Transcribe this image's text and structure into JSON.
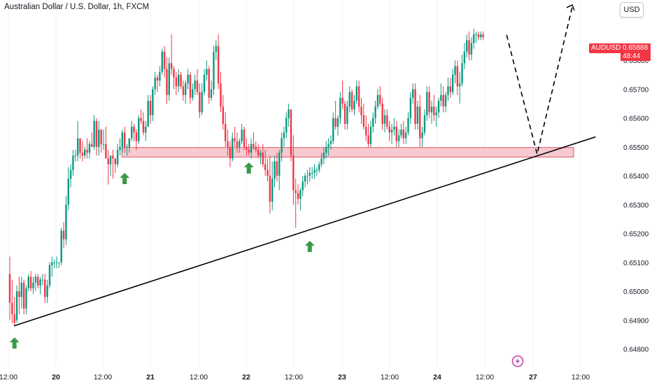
{
  "header": {
    "title": "Australian Dollar / U.S. Dollar, 1h, FXCM",
    "currency_button": "USD"
  },
  "price_tag": {
    "symbol": "AUDUSD",
    "price": "0.65888",
    "countdown": "48:44",
    "color": "#f23645"
  },
  "colors": {
    "up": "#089981",
    "down": "#f23645",
    "zone_fill": "#f3b8c0",
    "zone_border": "#e0566a",
    "arrow": "#3a9a48",
    "trendline": "#000000"
  },
  "chart_data": {
    "type": "candlestick",
    "x_tick_labels": [
      "12:00",
      "20",
      "12:00",
      "21",
      "12:00",
      "22",
      "12:00",
      "23",
      "12:00",
      "24",
      "12:00",
      "27",
      "12:00"
    ],
    "y_tick_labels": [
      "0.64800",
      "0.64900",
      "0.65000",
      "0.65100",
      "0.65200",
      "0.65300",
      "0.65400",
      "0.65500",
      "0.65600",
      "0.65700",
      "0.65800"
    ],
    "ylim": [
      0.6476,
      0.6598
    ],
    "zone": {
      "low": 0.65465,
      "high": 0.65498
    },
    "trendline": [
      {
        "t": 0,
        "price": 0.6488
      },
      {
        "t": 250,
        "price": 0.65535
      }
    ],
    "projection": [
      {
        "t": 212,
        "price": 0.65888
      },
      {
        "t": 225,
        "price": 0.65475
      },
      {
        "t": 240,
        "price": 0.65985
      }
    ],
    "arrow_markers": [
      2,
      49,
      102,
      128
    ],
    "candles": [
      [
        0.6506,
        0.6512,
        0.649,
        0.6496
      ],
      [
        0.6496,
        0.6504,
        0.6489,
        0.6492
      ],
      [
        0.6492,
        0.6498,
        0.6488,
        0.6489
      ],
      [
        0.649,
        0.6502,
        0.6489,
        0.65
      ],
      [
        0.65,
        0.6505,
        0.6492,
        0.6498
      ],
      [
        0.6498,
        0.6505,
        0.6494,
        0.6503
      ],
      [
        0.6503,
        0.6504,
        0.6492,
        0.6494
      ],
      [
        0.6494,
        0.6502,
        0.6492,
        0.6501
      ],
      [
        0.6501,
        0.6506,
        0.65,
        0.6505
      ],
      [
        0.6505,
        0.6507,
        0.65,
        0.6501
      ],
      [
        0.6501,
        0.6505,
        0.6499,
        0.6503
      ],
      [
        0.6503,
        0.6506,
        0.65,
        0.6505
      ],
      [
        0.6505,
        0.6506,
        0.6501,
        0.6502
      ],
      [
        0.6502,
        0.6505,
        0.6499,
        0.6504
      ],
      [
        0.6504,
        0.6506,
        0.6502,
        0.6504
      ],
      [
        0.6504,
        0.6506,
        0.6496,
        0.6498
      ],
      [
        0.6498,
        0.6504,
        0.6496,
        0.6502
      ],
      [
        0.6502,
        0.651,
        0.6501,
        0.6509
      ],
      [
        0.6509,
        0.6512,
        0.6505,
        0.651
      ],
      [
        0.651,
        0.6511,
        0.6508,
        0.651
      ],
      [
        0.651,
        0.6512,
        0.6508,
        0.651
      ],
      [
        0.651,
        0.651,
        0.6508,
        0.651
      ],
      [
        0.651,
        0.6522,
        0.6509,
        0.6521
      ],
      [
        0.6521,
        0.6524,
        0.6515,
        0.6518
      ],
      [
        0.6518,
        0.6533,
        0.6516,
        0.653
      ],
      [
        0.653,
        0.6543,
        0.6528,
        0.6539
      ],
      [
        0.6539,
        0.6544,
        0.6536,
        0.6542
      ],
      [
        0.6542,
        0.6549,
        0.654,
        0.6547
      ],
      [
        0.6547,
        0.6549,
        0.6545,
        0.6547
      ],
      [
        0.6547,
        0.6559,
        0.6545,
        0.6553
      ],
      [
        0.6553,
        0.6552,
        0.6546,
        0.6548
      ],
      [
        0.6548,
        0.6552,
        0.6545,
        0.6547
      ],
      [
        0.6547,
        0.655,
        0.6546,
        0.6549
      ],
      [
        0.6549,
        0.6553,
        0.6546,
        0.6548
      ],
      [
        0.6548,
        0.6552,
        0.6546,
        0.6551
      ],
      [
        0.6551,
        0.6555,
        0.655,
        0.655
      ],
      [
        0.655,
        0.6561,
        0.6549,
        0.6559
      ],
      [
        0.6559,
        0.656,
        0.6547,
        0.655
      ],
      [
        0.655,
        0.6559,
        0.6547,
        0.6556
      ],
      [
        0.6556,
        0.6556,
        0.6548,
        0.6551
      ],
      [
        0.6551,
        0.6556,
        0.6549,
        0.6551
      ],
      [
        0.6551,
        0.6557,
        0.6546,
        0.6546
      ],
      [
        0.6546,
        0.6549,
        0.6537,
        0.6544
      ],
      [
        0.6544,
        0.6547,
        0.654,
        0.6547
      ],
      [
        0.6547,
        0.6549,
        0.6539,
        0.6546
      ],
      [
        0.6546,
        0.6546,
        0.6541,
        0.6544
      ],
      [
        0.6544,
        0.6551,
        0.6543,
        0.6549
      ],
      [
        0.6549,
        0.6553,
        0.6547,
        0.655
      ],
      [
        0.655,
        0.6556,
        0.6548,
        0.6555
      ],
      [
        0.6555,
        0.6557,
        0.6548,
        0.655
      ],
      [
        0.655,
        0.6551,
        0.6547,
        0.655
      ],
      [
        0.655,
        0.6553,
        0.6548,
        0.6553
      ],
      [
        0.6553,
        0.6559,
        0.6552,
        0.6557
      ],
      [
        0.6557,
        0.6558,
        0.6552,
        0.6555
      ],
      [
        0.6555,
        0.6556,
        0.6549,
        0.6552
      ],
      [
        0.6552,
        0.6561,
        0.6551,
        0.656
      ],
      [
        0.656,
        0.6563,
        0.6558,
        0.6559
      ],
      [
        0.6559,
        0.6562,
        0.6554,
        0.6555
      ],
      [
        0.6555,
        0.6559,
        0.6552,
        0.6557
      ],
      [
        0.6557,
        0.6568,
        0.6557,
        0.6566
      ],
      [
        0.6566,
        0.6568,
        0.6558,
        0.6561
      ],
      [
        0.6561,
        0.6571,
        0.6559,
        0.657
      ],
      [
        0.657,
        0.6576,
        0.6568,
        0.6574
      ],
      [
        0.6574,
        0.6575,
        0.6569,
        0.6573
      ],
      [
        0.6573,
        0.6578,
        0.6571,
        0.6576
      ],
      [
        0.6576,
        0.6584,
        0.6575,
        0.6583
      ],
      [
        0.6583,
        0.6585,
        0.6574,
        0.6577
      ],
      [
        0.6577,
        0.6581,
        0.6565,
        0.6568
      ],
      [
        0.6568,
        0.6581,
        0.6566,
        0.6579
      ],
      [
        0.6579,
        0.6589,
        0.6575,
        0.6577
      ],
      [
        0.6577,
        0.6578,
        0.657,
        0.6574
      ],
      [
        0.6574,
        0.6576,
        0.6568,
        0.6571
      ],
      [
        0.6571,
        0.6577,
        0.6569,
        0.6575
      ],
      [
        0.6575,
        0.6576,
        0.657,
        0.6571
      ],
      [
        0.6571,
        0.6573,
        0.6566,
        0.6568
      ],
      [
        0.6568,
        0.6573,
        0.6565,
        0.6572
      ],
      [
        0.6572,
        0.6577,
        0.657,
        0.6575
      ],
      [
        0.6575,
        0.6576,
        0.6565,
        0.6567
      ],
      [
        0.6567,
        0.6572,
        0.6566,
        0.657
      ],
      [
        0.657,
        0.6575,
        0.6568,
        0.6573
      ],
      [
        0.6573,
        0.6577,
        0.6568,
        0.6569
      ],
      [
        0.6569,
        0.6572,
        0.656,
        0.6562
      ],
      [
        0.6562,
        0.6572,
        0.6561,
        0.6569
      ],
      [
        0.6569,
        0.6577,
        0.6568,
        0.6575
      ],
      [
        0.6575,
        0.658,
        0.6573,
        0.6577
      ],
      [
        0.6577,
        0.6578,
        0.6565,
        0.6567
      ],
      [
        0.6567,
        0.6573,
        0.6566,
        0.657
      ],
      [
        0.657,
        0.6585,
        0.6568,
        0.6583
      ],
      [
        0.6583,
        0.6587,
        0.658,
        0.6585
      ],
      [
        0.6585,
        0.6589,
        0.657,
        0.6572
      ],
      [
        0.6572,
        0.6576,
        0.6562,
        0.6564
      ],
      [
        0.6564,
        0.6568,
        0.6556,
        0.6558
      ],
      [
        0.6558,
        0.6562,
        0.655,
        0.6552
      ],
      [
        0.6552,
        0.6556,
        0.6547,
        0.655
      ],
      [
        0.655,
        0.6552,
        0.6543,
        0.6546
      ],
      [
        0.6546,
        0.6555,
        0.6545,
        0.6553
      ],
      [
        0.6553,
        0.6557,
        0.655,
        0.6552
      ],
      [
        0.6552,
        0.6555,
        0.6548,
        0.655
      ],
      [
        0.655,
        0.6553,
        0.6548,
        0.6552
      ],
      [
        0.6552,
        0.6558,
        0.6551,
        0.6556
      ],
      [
        0.6556,
        0.6557,
        0.6549,
        0.655
      ],
      [
        0.655,
        0.6553,
        0.6547,
        0.6549
      ],
      [
        0.6549,
        0.6551,
        0.6547,
        0.6548
      ],
      [
        0.6548,
        0.6553,
        0.6546,
        0.6551
      ],
      [
        0.6551,
        0.6555,
        0.6549,
        0.655
      ],
      [
        0.655,
        0.6552,
        0.6548,
        0.6549
      ],
      [
        0.6549,
        0.6551,
        0.6546,
        0.6547
      ],
      [
        0.6547,
        0.6549,
        0.6544,
        0.6548
      ],
      [
        0.6548,
        0.6551,
        0.6543,
        0.6544
      ],
      [
        0.6544,
        0.6549,
        0.654,
        0.6542
      ],
      [
        0.6542,
        0.6546,
        0.6538,
        0.654
      ],
      [
        0.654,
        0.6547,
        0.6527,
        0.6531
      ],
      [
        0.6531,
        0.6545,
        0.6528,
        0.6539
      ],
      [
        0.6539,
        0.6547,
        0.6536,
        0.6545
      ],
      [
        0.6545,
        0.6548,
        0.6538,
        0.654
      ],
      [
        0.654,
        0.6549,
        0.6535,
        0.6548
      ],
      [
        0.6548,
        0.6555,
        0.6545,
        0.6553
      ],
      [
        0.6553,
        0.6557,
        0.655,
        0.6555
      ],
      [
        0.6555,
        0.6562,
        0.6553,
        0.656
      ],
      [
        0.656,
        0.6565,
        0.6557,
        0.6563
      ],
      [
        0.6563,
        0.6563,
        0.6545,
        0.6547
      ],
      [
        0.6547,
        0.6554,
        0.653,
        0.6535
      ],
      [
        0.6535,
        0.6539,
        0.6522,
        0.6534
      ],
      [
        0.6534,
        0.6537,
        0.653,
        0.6532
      ],
      [
        0.6532,
        0.6536,
        0.6528,
        0.6535
      ],
      [
        0.6535,
        0.654,
        0.6533,
        0.6538
      ],
      [
        0.6538,
        0.6541,
        0.6536,
        0.654
      ],
      [
        0.654,
        0.6542,
        0.6537,
        0.654
      ],
      [
        0.654,
        0.6543,
        0.6538,
        0.6541
      ],
      [
        0.6541,
        0.6543,
        0.6539,
        0.6541
      ],
      [
        0.6541,
        0.6544,
        0.6539,
        0.6542
      ],
      [
        0.6542,
        0.6543,
        0.654,
        0.6542
      ],
      [
        0.6542,
        0.6545,
        0.6541,
        0.6544
      ],
      [
        0.6544,
        0.6548,
        0.6543,
        0.6546
      ],
      [
        0.6546,
        0.655,
        0.6544,
        0.6548
      ],
      [
        0.6548,
        0.6552,
        0.6546,
        0.655
      ],
      [
        0.655,
        0.6553,
        0.6547,
        0.6551
      ],
      [
        0.6551,
        0.6554,
        0.6549,
        0.6552
      ],
      [
        0.6552,
        0.6562,
        0.6551,
        0.656
      ],
      [
        0.656,
        0.6566,
        0.6556,
        0.6557
      ],
      [
        0.6557,
        0.6561,
        0.6554,
        0.656
      ],
      [
        0.656,
        0.6569,
        0.6558,
        0.6567
      ],
      [
        0.6567,
        0.6573,
        0.6563,
        0.6565
      ],
      [
        0.6565,
        0.6566,
        0.6556,
        0.6558
      ],
      [
        0.6558,
        0.6566,
        0.6556,
        0.6564
      ],
      [
        0.6564,
        0.6571,
        0.6562,
        0.6569
      ],
      [
        0.6569,
        0.657,
        0.6562,
        0.6563
      ],
      [
        0.6563,
        0.6568,
        0.6561,
        0.6566
      ],
      [
        0.6566,
        0.6573,
        0.6565,
        0.6571
      ],
      [
        0.6571,
        0.6573,
        0.6562,
        0.6564
      ],
      [
        0.6564,
        0.6567,
        0.6558,
        0.6561
      ],
      [
        0.6561,
        0.6565,
        0.6556,
        0.6557
      ],
      [
        0.6557,
        0.6561,
        0.6552,
        0.6554
      ],
      [
        0.6554,
        0.6558,
        0.655,
        0.6551
      ],
      [
        0.6551,
        0.6559,
        0.655,
        0.6557
      ],
      [
        0.6557,
        0.6562,
        0.6555,
        0.656
      ],
      [
        0.656,
        0.6566,
        0.6558,
        0.6564
      ],
      [
        0.6564,
        0.657,
        0.6563,
        0.6568
      ],
      [
        0.6568,
        0.6571,
        0.6564,
        0.6565
      ],
      [
        0.6565,
        0.6567,
        0.6556,
        0.6558
      ],
      [
        0.6558,
        0.6563,
        0.6555,
        0.6561
      ],
      [
        0.6561,
        0.6563,
        0.6556,
        0.6557
      ],
      [
        0.6557,
        0.6559,
        0.6552,
        0.6555
      ],
      [
        0.6555,
        0.6558,
        0.6551,
        0.6556
      ],
      [
        0.6556,
        0.656,
        0.6554,
        0.6557
      ],
      [
        0.6557,
        0.6559,
        0.655,
        0.6552
      ],
      [
        0.6552,
        0.6556,
        0.655,
        0.6554
      ],
      [
        0.6554,
        0.6558,
        0.6553,
        0.6556
      ],
      [
        0.6556,
        0.6559,
        0.6551,
        0.6553
      ],
      [
        0.6553,
        0.6557,
        0.6551,
        0.6555
      ],
      [
        0.6555,
        0.6562,
        0.6554,
        0.656
      ],
      [
        0.656,
        0.6569,
        0.6558,
        0.6567
      ],
      [
        0.6567,
        0.6572,
        0.6565,
        0.657
      ],
      [
        0.657,
        0.6572,
        0.6556,
        0.6558
      ],
      [
        0.6558,
        0.6566,
        0.6556,
        0.6564
      ],
      [
        0.6564,
        0.6568,
        0.655,
        0.6553
      ],
      [
        0.6553,
        0.6557,
        0.655,
        0.6555
      ],
      [
        0.6555,
        0.6563,
        0.6554,
        0.6561
      ],
      [
        0.6561,
        0.6571,
        0.6559,
        0.6569
      ],
      [
        0.6569,
        0.6571,
        0.656,
        0.6562
      ],
      [
        0.6562,
        0.6566,
        0.6558,
        0.6564
      ],
      [
        0.6564,
        0.6568,
        0.6559,
        0.6561
      ],
      [
        0.6561,
        0.6564,
        0.6557,
        0.6562
      ],
      [
        0.6562,
        0.6567,
        0.656,
        0.6566
      ],
      [
        0.6566,
        0.6572,
        0.6564,
        0.6568
      ],
      [
        0.6568,
        0.6571,
        0.6562,
        0.6564
      ],
      [
        0.6564,
        0.6569,
        0.6562,
        0.6568
      ],
      [
        0.6568,
        0.6574,
        0.6566,
        0.6571
      ],
      [
        0.6571,
        0.6574,
        0.6567,
        0.6569
      ],
      [
        0.6569,
        0.6577,
        0.6568,
        0.6575
      ],
      [
        0.6575,
        0.658,
        0.6572,
        0.6578
      ],
      [
        0.6578,
        0.658,
        0.6568,
        0.6571
      ],
      [
        0.6571,
        0.6576,
        0.6565,
        0.6572
      ],
      [
        0.6572,
        0.6582,
        0.6571,
        0.6579
      ],
      [
        0.6579,
        0.6586,
        0.6577,
        0.6583
      ],
      [
        0.6583,
        0.6589,
        0.6581,
        0.6587
      ],
      [
        0.6587,
        0.659,
        0.658,
        0.6582
      ],
      [
        0.6582,
        0.6588,
        0.658,
        0.6586
      ],
      [
        0.6586,
        0.6591,
        0.6584,
        0.6589
      ],
      [
        0.6589,
        0.659,
        0.6586,
        0.6589
      ],
      [
        0.6589,
        0.659,
        0.6587,
        0.6588
      ],
      [
        0.6588,
        0.659,
        0.6587,
        0.6589
      ],
      [
        0.6589,
        0.659,
        0.6587,
        0.6588
      ]
    ]
  }
}
